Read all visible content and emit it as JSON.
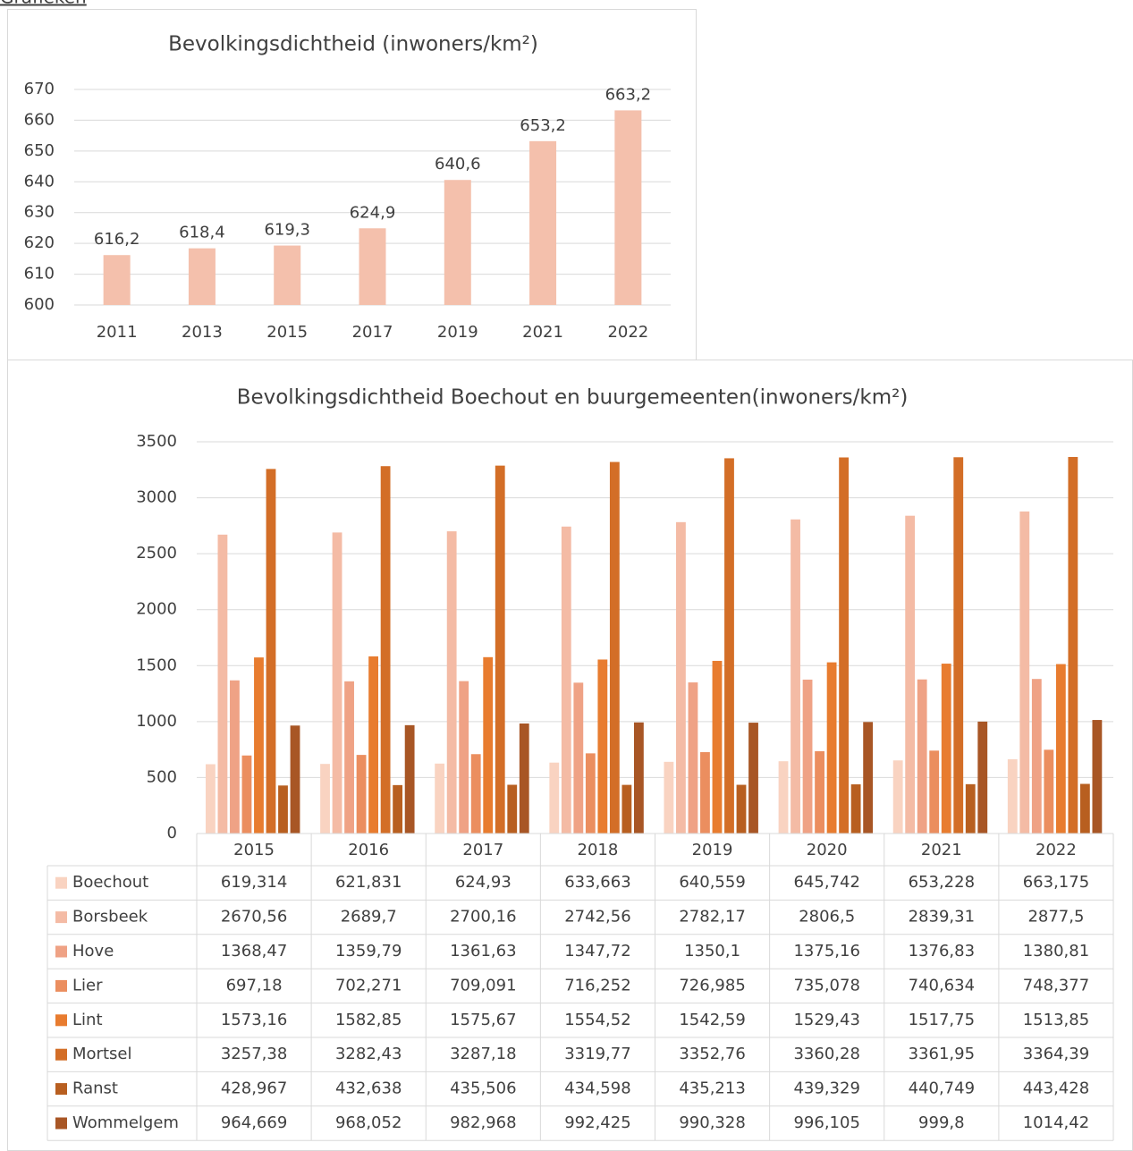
{
  "heading": "Grafieken",
  "chart_data": [
    {
      "type": "bar",
      "title": "Bevolkingsdichtheid (inwoners/km²)",
      "categories": [
        "2011",
        "2013",
        "2015",
        "2017",
        "2019",
        "2021",
        "2022"
      ],
      "values": [
        616.2,
        618.4,
        619.3,
        624.9,
        640.6,
        653.2,
        663.2
      ],
      "value_labels": [
        "616,2",
        "618,4",
        "619,3",
        "624,9",
        "640,6",
        "653,2",
        "663,2"
      ],
      "color": "#f4c0ac",
      "ylim": [
        600,
        670
      ],
      "yticks": [
        600,
        610,
        620,
        630,
        640,
        650,
        660,
        670
      ],
      "grid": true
    },
    {
      "type": "bar",
      "title": "Bevolkingsdichtheid Boechout en buurgemeenten(inwoners/km²)",
      "categories": [
        "2015",
        "2016",
        "2017",
        "2018",
        "2019",
        "2020",
        "2021",
        "2022"
      ],
      "ylim": [
        0,
        3500
      ],
      "yticks": [
        0,
        500,
        1000,
        1500,
        2000,
        2500,
        3000,
        3500
      ],
      "grid": true,
      "data_table": true,
      "series": [
        {
          "name": "Boechout",
          "color": "#f9d3c1",
          "values": [
            619.314,
            621.831,
            624.93,
            633.663,
            640.559,
            645.742,
            653.228,
            663.175
          ],
          "value_labels": [
            "619,314",
            "621,831",
            "624,93",
            "633,663",
            "640,559",
            "645,742",
            "653,228",
            "663,175"
          ]
        },
        {
          "name": "Borsbeek",
          "color": "#f4bba5",
          "values": [
            2670.56,
            2689.7,
            2700.16,
            2742.56,
            2782.17,
            2806.5,
            2839.31,
            2877.5
          ],
          "value_labels": [
            "2670,56",
            "2689,7",
            "2700,16",
            "2742,56",
            "2782,17",
            "2806,5",
            "2839,31",
            "2877,5"
          ]
        },
        {
          "name": "Hove",
          "color": "#efa285",
          "values": [
            1368.47,
            1359.79,
            1361.63,
            1347.72,
            1350.1,
            1375.16,
            1376.83,
            1380.81
          ],
          "value_labels": [
            "1368,47",
            "1359,79",
            "1361,63",
            "1347,72",
            "1350,1",
            "1375,16",
            "1376,83",
            "1380,81"
          ]
        },
        {
          "name": "Lier",
          "color": "#eb8e5f",
          "values": [
            697.18,
            702.271,
            709.091,
            716.252,
            726.985,
            735.078,
            740.634,
            748.377
          ],
          "value_labels": [
            "697,18",
            "702,271",
            "709,091",
            "716,252",
            "726,985",
            "735,078",
            "740,634",
            "748,377"
          ]
        },
        {
          "name": "Lint",
          "color": "#e87c2f",
          "values": [
            1573.16,
            1582.85,
            1575.67,
            1554.52,
            1542.59,
            1529.43,
            1517.75,
            1513.85
          ],
          "value_labels": [
            "1573,16",
            "1582,85",
            "1575,67",
            "1554,52",
            "1542,59",
            "1529,43",
            "1517,75",
            "1513,85"
          ]
        },
        {
          "name": "Mortsel",
          "color": "#d36e27",
          "values": [
            3257.38,
            3282.43,
            3287.18,
            3319.77,
            3352.76,
            3360.28,
            3361.95,
            3364.39
          ],
          "value_labels": [
            "3257,38",
            "3282,43",
            "3287,18",
            "3319,77",
            "3352,76",
            "3360,28",
            "3361,95",
            "3364,39"
          ]
        },
        {
          "name": "Ranst",
          "color": "#b85f20",
          "values": [
            428.967,
            432.638,
            435.506,
            434.598,
            435.213,
            439.329,
            440.749,
            443.428
          ],
          "value_labels": [
            "428,967",
            "432,638",
            "435,506",
            "434,598",
            "435,213",
            "439,329",
            "440,749",
            "443,428"
          ]
        },
        {
          "name": "Wommelgem",
          "color": "#a85625",
          "values": [
            964.669,
            968.052,
            982.968,
            992.425,
            990.328,
            996.105,
            999.8,
            1014.42
          ],
          "value_labels": [
            "964,669",
            "968,052",
            "982,968",
            "992,425",
            "990,328",
            "996,105",
            "999,8",
            "1014,42"
          ]
        }
      ]
    }
  ]
}
